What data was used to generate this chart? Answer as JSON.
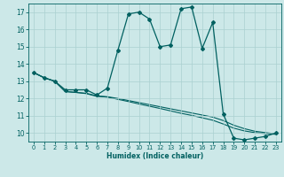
{
  "xlabel": "Humidex (Indice chaleur)",
  "xlim": [
    -0.5,
    23.5
  ],
  "ylim": [
    9.5,
    17.5
  ],
  "xticks": [
    0,
    1,
    2,
    3,
    4,
    5,
    6,
    7,
    8,
    9,
    10,
    11,
    12,
    13,
    14,
    15,
    16,
    17,
    18,
    19,
    20,
    21,
    22,
    23
  ],
  "yticks": [
    10,
    11,
    12,
    13,
    14,
    15,
    16,
    17
  ],
  "bg_color": "#cce8e8",
  "line_color": "#006060",
  "grid_color": "#aad0d0",
  "line1_x": [
    0,
    1,
    2,
    3,
    4,
    5,
    6,
    7,
    8,
    9,
    10,
    11,
    12,
    13,
    14,
    15,
    16,
    17,
    18,
    19,
    20,
    21,
    22,
    23
  ],
  "line1_y": [
    13.5,
    13.2,
    13.0,
    12.5,
    12.5,
    12.5,
    12.2,
    12.6,
    14.8,
    16.9,
    17.0,
    16.6,
    15.0,
    15.1,
    17.2,
    17.3,
    14.9,
    16.4,
    11.1,
    9.7,
    9.6,
    9.7,
    9.8,
    10.0
  ],
  "line2_y": [
    13.5,
    13.2,
    13.0,
    12.4,
    12.35,
    12.3,
    12.15,
    12.1,
    12.0,
    11.88,
    11.76,
    11.64,
    11.52,
    11.4,
    11.28,
    11.16,
    11.04,
    10.92,
    10.72,
    10.45,
    10.25,
    10.1,
    10.02,
    9.95
  ],
  "line3_y": [
    13.5,
    13.2,
    13.0,
    12.4,
    12.35,
    12.28,
    12.12,
    12.08,
    11.95,
    11.82,
    11.68,
    11.55,
    11.42,
    11.28,
    11.14,
    11.02,
    10.88,
    10.74,
    10.52,
    10.28,
    10.12,
    10.02,
    9.97,
    9.92
  ]
}
